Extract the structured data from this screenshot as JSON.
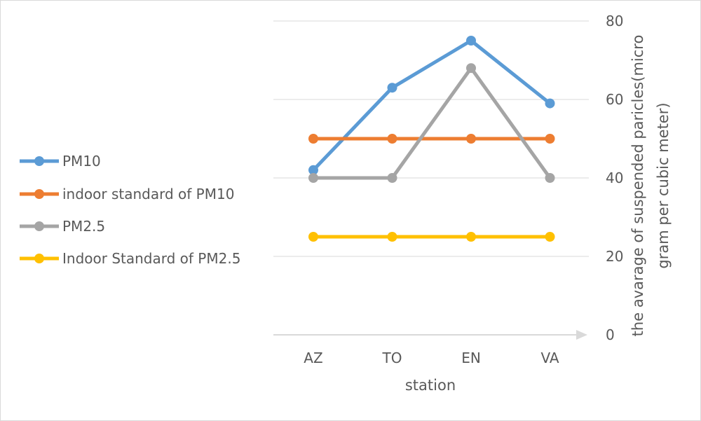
{
  "chart_data": {
    "type": "line",
    "categories": [
      "AZ",
      "TO",
      "EN",
      "VA"
    ],
    "series": [
      {
        "name": "PM10",
        "values": [
          42,
          63,
          75,
          59
        ],
        "color": "#5B9BD5"
      },
      {
        "name": "indoor standard of PM10",
        "values": [
          50,
          50,
          50,
          50
        ],
        "color": "#ED7D31"
      },
      {
        "name": "PM2.5",
        "values": [
          40,
          40,
          68,
          40
        ],
        "color": "#A5A5A5"
      },
      {
        "name": "Indoor Standard of PM2.5",
        "values": [
          25,
          25,
          25,
          25
        ],
        "color": "#FFC000"
      }
    ],
    "title": "",
    "xlabel": "station",
    "ylabel_lines": [
      "the avarage of suspended paricles(micro",
      "gram per cubic meter)"
    ],
    "ylim": [
      0,
      80
    ],
    "yticks": [
      0,
      20,
      40,
      60,
      80
    ],
    "y_axis_side": "right",
    "grid": true,
    "legend_position": "left",
    "colors": {
      "grid": "#D9D9D9",
      "axis": "#D9D9D9",
      "text": "#595959",
      "frame": "#D9D9D9"
    }
  }
}
